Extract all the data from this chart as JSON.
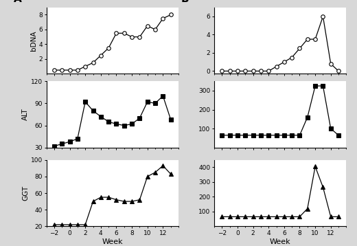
{
  "panel_A": {
    "bDNA": {
      "x": [
        -2,
        -1,
        0,
        1,
        2,
        3,
        4,
        5,
        6,
        7,
        8,
        9,
        10,
        11,
        12,
        13
      ],
      "y": [
        0.5,
        0.5,
        0.5,
        0.5,
        1.0,
        1.5,
        2.5,
        3.5,
        5.5,
        5.5,
        5.0,
        5.0,
        6.5,
        6.0,
        7.5,
        8.0
      ]
    },
    "ALT": {
      "x": [
        -2,
        -1,
        0,
        1,
        2,
        3,
        4,
        5,
        6,
        7,
        8,
        9,
        10,
        11,
        12,
        13
      ],
      "y": [
        32,
        35,
        38,
        42,
        92,
        80,
        72,
        65,
        62,
        60,
        62,
        70,
        92,
        90,
        100,
        68
      ]
    },
    "GGT": {
      "x": [
        -2,
        -1,
        0,
        1,
        2,
        3,
        4,
        5,
        6,
        7,
        8,
        9,
        10,
        11,
        12,
        13
      ],
      "y": [
        22,
        22,
        22,
        22,
        22,
        50,
        55,
        55,
        52,
        50,
        50,
        52,
        80,
        85,
        93,
        83
      ]
    }
  },
  "panel_B": {
    "bDNA": {
      "x": [
        -2,
        -1,
        0,
        1,
        2,
        3,
        4,
        5,
        6,
        7,
        8,
        9,
        10,
        11,
        12,
        13
      ],
      "y": [
        0,
        0,
        0,
        0,
        0,
        0,
        0,
        0.5,
        1.0,
        1.5,
        2.5,
        3.5,
        3.5,
        6.0,
        0.8,
        0
      ]
    },
    "ALT": {
      "x": [
        -2,
        -1,
        0,
        1,
        2,
        3,
        4,
        5,
        6,
        7,
        8,
        9,
        10,
        11,
        12,
        13
      ],
      "y": [
        65,
        65,
        65,
        65,
        65,
        65,
        65,
        65,
        65,
        65,
        65,
        160,
        325,
        325,
        100,
        65
      ]
    },
    "GGT": {
      "x": [
        -2,
        -1,
        0,
        1,
        2,
        3,
        4,
        5,
        6,
        7,
        8,
        9,
        10,
        11,
        12,
        13
      ],
      "y": [
        65,
        65,
        65,
        65,
        65,
        65,
        65,
        65,
        65,
        65,
        65,
        120,
        405,
        265,
        65,
        65
      ]
    }
  },
  "xlim": [
    -3,
    14
  ],
  "xticks": [
    -2,
    0,
    2,
    4,
    6,
    8,
    10,
    12
  ],
  "panel_A_ylims": {
    "bDNA": [
      0,
      9
    ],
    "ALT": [
      30,
      120
    ],
    "GGT": [
      20,
      100
    ]
  },
  "panel_A_yticks": {
    "bDNA": [
      2,
      4,
      6,
      8
    ],
    "ALT": [
      30,
      60,
      90,
      120
    ],
    "GGT": [
      20,
      40,
      60,
      80,
      100
    ]
  },
  "panel_B_ylims": {
    "bDNA": [
      -0.3,
      7
    ],
    "ALT": [
      0,
      350
    ],
    "GGT": [
      0,
      450
    ]
  },
  "panel_B_yticks": {
    "bDNA": [
      0,
      2,
      4,
      6
    ],
    "ALT": [
      100,
      200,
      300
    ],
    "GGT": [
      100,
      200,
      300,
      400
    ]
  },
  "xlim_B": [
    -3,
    14
  ],
  "xticks_B": [
    -2,
    0,
    2,
    4,
    6,
    8,
    10,
    12
  ],
  "ylabel_A": [
    "bDNA",
    "ALT",
    "GGT"
  ],
  "xlabel": "Week",
  "panel_labels": [
    "A",
    "B"
  ],
  "bg_color": "#d8d8d8",
  "line_color": "black",
  "marker_bDNA": "o",
  "marker_ALT": "s",
  "marker_GGT": "^",
  "markersize": 4,
  "lw": 0.9
}
